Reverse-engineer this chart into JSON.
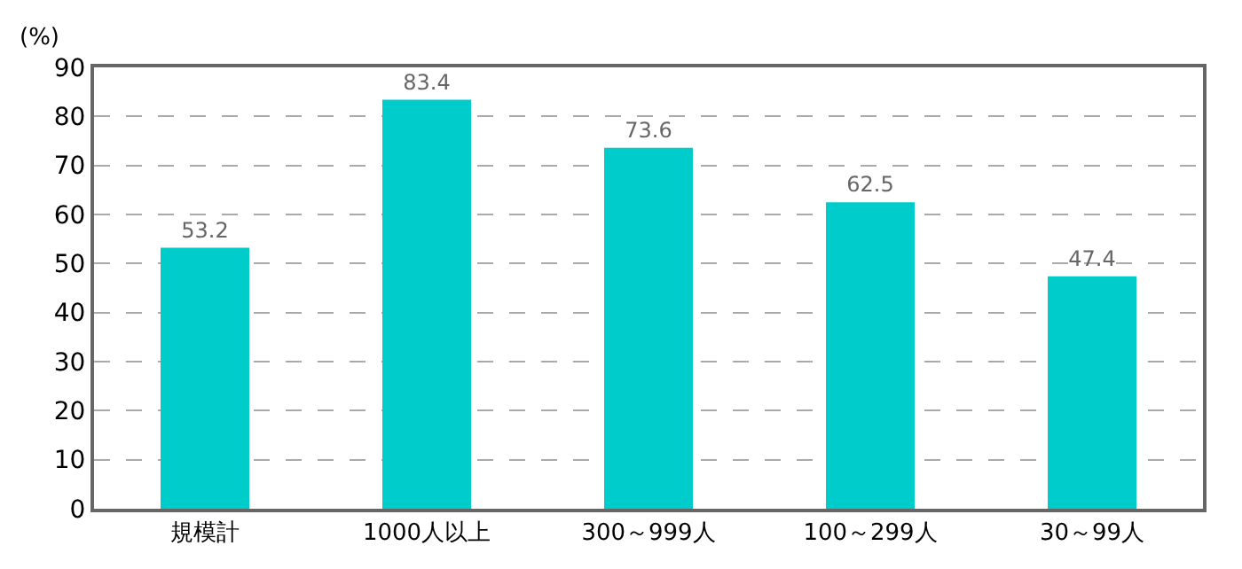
{
  "chart_data": {
    "type": "bar",
    "ylabel": "(%)",
    "categories": [
      "規模計",
      "1000人以上",
      "300～999人",
      "100～299人",
      "30～99人"
    ],
    "values": [
      53.2,
      83.4,
      73.6,
      62.5,
      47.4
    ],
    "color": "#00cccc",
    "ylim": [
      0,
      90
    ],
    "yticks": [
      0,
      10,
      20,
      30,
      40,
      50,
      60,
      70,
      80,
      90
    ],
    "grid": "y",
    "data_labels": true,
    "legend": false
  }
}
